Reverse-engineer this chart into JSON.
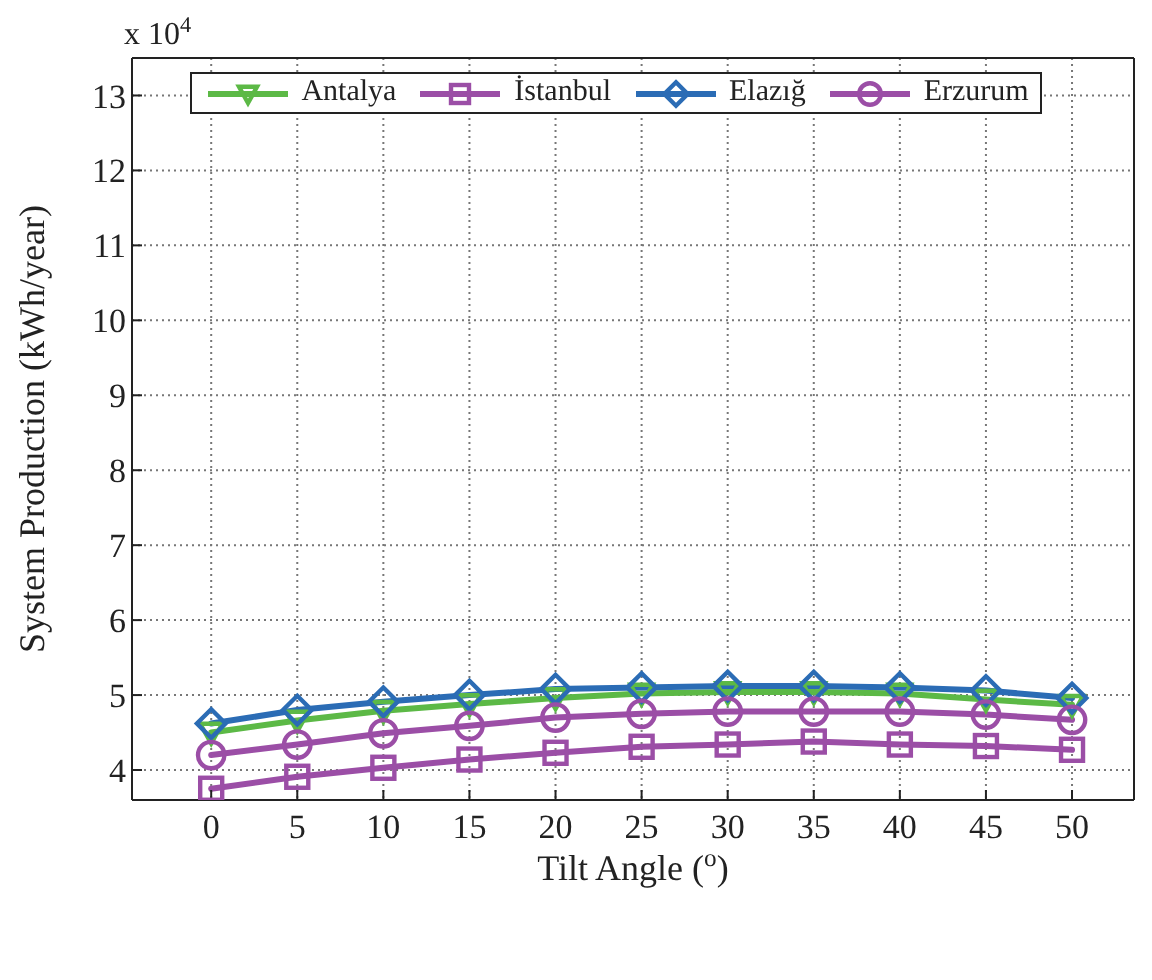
{
  "chart_data": {
    "type": "line",
    "xlabel": "Tilt Angle ($^{o}$)",
    "ylabel": "System Production (kWh/year)",
    "annotations": [
      "x 10$^{4}$"
    ],
    "x": [
      0,
      5,
      10,
      15,
      20,
      25,
      30,
      35,
      40,
      45,
      50
    ],
    "xlim": [
      -4.6,
      53.6
    ],
    "xticks": [
      0,
      5,
      10,
      15,
      20,
      25,
      30,
      35,
      40,
      45,
      50
    ],
    "ylim": [
      3.6,
      13.5
    ],
    "yticks": [
      4,
      5,
      6,
      7,
      8,
      9,
      10,
      11,
      12,
      13
    ],
    "grid": true,
    "legend": "top",
    "line_style": "solid",
    "series": [
      {
        "name": "Antalya",
        "color": "#5cb946",
        "marker": "triangle",
        "values": [
          4.5,
          4.66,
          4.79,
          4.88,
          4.96,
          5.02,
          5.04,
          5.04,
          5.02,
          4.94,
          4.87
        ]
      },
      {
        "name": "İstanbul",
        "color": "#9b4ea6",
        "marker": "square",
        "values": [
          3.75,
          3.91,
          4.03,
          4.14,
          4.23,
          4.31,
          4.34,
          4.38,
          4.34,
          4.32,
          4.27
        ]
      },
      {
        "name": "Elazığ",
        "color": "#2b6cb5",
        "marker": "diamond",
        "values": [
          4.62,
          4.8,
          4.91,
          5.0,
          5.08,
          5.1,
          5.12,
          5.12,
          5.1,
          5.06,
          4.96
        ]
      },
      {
        "name": "Erzurum",
        "color": "#9b4ea6",
        "marker": "circle",
        "values": [
          4.2,
          4.34,
          4.49,
          4.59,
          4.7,
          4.75,
          4.78,
          4.78,
          4.78,
          4.74,
          4.67
        ]
      }
    ]
  }
}
